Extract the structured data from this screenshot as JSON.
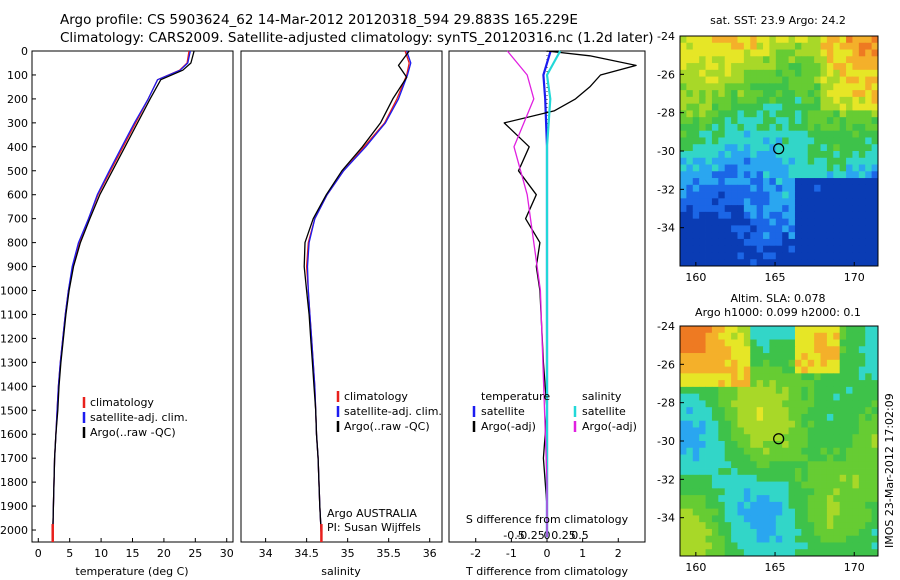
{
  "header": {
    "line1": "Argo profile: CS 5903624_62 14-Mar-2012 20120318_594 29.883S 165.229E",
    "line2": "Climatology: CARS2009. Satellite-adjusted climatology: synTS_20120316.nc (1.2d later)"
  },
  "colors": {
    "climatology": "#e8201c",
    "satellite": "#1c1cf0",
    "argo": "#000000",
    "t_satellite": "#1c1cf0",
    "s_satellite": "#22d8d8",
    "s_argo_adj": "#e020e0"
  },
  "chart_data": [
    {
      "type": "line",
      "panel": "temperature",
      "xlabel": "temperature (deg C)",
      "ylabel": "",
      "xlim": [
        -1,
        31
      ],
      "ylim": [
        2050,
        0
      ],
      "xticks": [
        "0",
        "5",
        "10",
        "15",
        "20",
        "25",
        "30"
      ],
      "xtick_values": [
        0,
        5,
        10,
        15,
        20,
        25,
        30
      ],
      "yticks": [
        "0",
        "100",
        "200",
        "300",
        "400",
        "500",
        "600",
        "700",
        "800",
        "900",
        "1000",
        "1100",
        "1200",
        "1300",
        "1400",
        "1500",
        "1600",
        "1700",
        "1800",
        "1900",
        "2000"
      ],
      "ytick_values": [
        0,
        100,
        200,
        300,
        400,
        500,
        600,
        700,
        800,
        900,
        1000,
        1100,
        1200,
        1300,
        1400,
        1500,
        1600,
        1700,
        1800,
        1900,
        2000
      ],
      "legend": [
        "climatology",
        "satellite-adj. clim.",
        "Argo(..raw -QC)"
      ],
      "series": [
        {
          "name": "climatology",
          "x": [
            24.0,
            23.7,
            22.5,
            19.0,
            17.5,
            15.5,
            13.5,
            11.5,
            9.5,
            8.0,
            6.5,
            5.5,
            4.8,
            4.3,
            3.9,
            3.5,
            3.2,
            3.0,
            2.8,
            2.6,
            2.4,
            2.3
          ],
          "y": [
            0,
            50,
            80,
            120,
            200,
            300,
            400,
            500,
            600,
            700,
            800,
            900,
            1000,
            1100,
            1200,
            1300,
            1400,
            1500,
            1600,
            1700,
            1900,
            2030
          ]
        },
        {
          "name": "satellite-adj. clim.",
          "x": [
            24.2,
            23.8,
            22.6,
            19.0,
            17.5,
            15.3,
            13.3,
            11.3,
            9.4,
            8.0,
            6.4,
            5.4,
            4.8,
            4.3,
            3.9,
            3.5,
            3.2,
            3.0,
            2.8,
            2.6,
            2.4,
            2.3
          ],
          "y": [
            0,
            50,
            80,
            120,
            200,
            300,
            400,
            500,
            600,
            700,
            800,
            900,
            1000,
            1100,
            1200,
            1300,
            1400,
            1500,
            1600,
            1700,
            1900,
            2030
          ]
        },
        {
          "name": "Argo(..raw -QC)",
          "x": [
            24.8,
            24.3,
            23.0,
            19.5,
            17.8,
            15.8,
            13.8,
            11.8,
            9.8,
            8.2,
            6.7,
            5.6,
            4.9,
            4.4,
            4.0,
            3.6,
            3.3,
            3.1,
            2.8,
            2.6,
            2.4,
            2.3
          ],
          "y": [
            0,
            50,
            80,
            120,
            200,
            300,
            400,
            500,
            600,
            700,
            800,
            900,
            1000,
            1100,
            1200,
            1300,
            1400,
            1500,
            1600,
            1700,
            1900,
            2030
          ]
        }
      ]
    },
    {
      "type": "line",
      "panel": "salinity",
      "xlabel": "salinity",
      "ylabel": "",
      "xlim": [
        33.7,
        36.15
      ],
      "ylim": [
        2050,
        0
      ],
      "xticks": [
        "34",
        "34.5",
        "35",
        "35.5",
        "36"
      ],
      "xtick_values": [
        34,
        34.5,
        35,
        35.5,
        36
      ],
      "legend": [
        "climatology",
        "satellite-adj. clim.",
        "Argo(..raw -QC)"
      ],
      "annotations": [
        "Argo AUSTRALIA",
        "PI: Susan Wijffels"
      ],
      "series": [
        {
          "name": "climatology",
          "x": [
            35.7,
            35.75,
            35.72,
            35.6,
            35.45,
            35.2,
            34.95,
            34.75,
            34.6,
            34.52,
            34.5,
            34.52,
            34.54,
            34.56,
            34.58,
            34.6,
            34.61,
            34.62,
            34.64,
            34.66,
            34.68
          ],
          "y": [
            0,
            50,
            100,
            200,
            300,
            400,
            500,
            600,
            700,
            800,
            900,
            1000,
            1100,
            1200,
            1300,
            1400,
            1500,
            1600,
            1700,
            1900,
            2030
          ]
        },
        {
          "name": "satellite-adj. clim.",
          "x": [
            35.72,
            35.77,
            35.73,
            35.62,
            35.46,
            35.22,
            34.95,
            34.75,
            34.6,
            34.53,
            34.51,
            34.52,
            34.54,
            34.56,
            34.58,
            34.6,
            34.61,
            34.62,
            34.64,
            34.66,
            34.68
          ],
          "y": [
            0,
            50,
            100,
            200,
            300,
            400,
            500,
            600,
            700,
            800,
            900,
            1000,
            1100,
            1200,
            1300,
            1400,
            1500,
            1600,
            1700,
            1900,
            2030
          ]
        },
        {
          "name": "Argo(..raw -QC)",
          "x": [
            35.75,
            35.62,
            35.72,
            35.55,
            35.4,
            35.18,
            34.93,
            34.74,
            34.58,
            34.48,
            34.47,
            34.5,
            34.53,
            34.55,
            34.57,
            34.59,
            34.61,
            34.62,
            34.64,
            34.66,
            34.68
          ],
          "y": [
            0,
            60,
            110,
            200,
            300,
            400,
            500,
            600,
            700,
            800,
            900,
            1000,
            1100,
            1200,
            1300,
            1400,
            1500,
            1600,
            1700,
            1900,
            2030
          ]
        }
      ]
    },
    {
      "type": "line",
      "panel": "differences",
      "xlabel": "T difference from climatology",
      "top_xlabel": "S difference from climatology",
      "xlim": [
        -2.75,
        2.75
      ],
      "ylim": [
        2050,
        0
      ],
      "xticks": [
        "-2",
        "-1",
        "0",
        "1",
        "2"
      ],
      "xtick_values": [
        -2,
        -1,
        0,
        1,
        2
      ],
      "s_ticks": [
        "-0.5",
        "-0.25",
        "0",
        "0.25",
        "0.5"
      ],
      "s_tick_values": [
        -0.5,
        -0.25,
        0,
        0.25,
        0.5
      ],
      "legend_temperature_title": "temperature",
      "legend_salinity_title": "salinity",
      "legend_temperature": [
        "satellite",
        "Argo(-adj)"
      ],
      "legend_salinity": [
        "satellite",
        "Argo(-adj)"
      ],
      "series": [
        {
          "name": "temperature satellite",
          "x": [
            0.1,
            0.0,
            -0.1,
            -0.05,
            0.0,
            0.0,
            0.0,
            0.0,
            0.0,
            0.0,
            0.0,
            0.0,
            0.0,
            0.0,
            0.0
          ],
          "y": [
            0,
            50,
            100,
            200,
            400,
            600,
            800,
            1000,
            1200,
            1400,
            1600,
            1800,
            1900,
            2000,
            2030
          ]
        },
        {
          "name": "temperature Argo(-adj)",
          "x": [
            0.0,
            1.2,
            2.5,
            1.5,
            1.2,
            0.8,
            0.2,
            -1.2,
            -0.5,
            -0.8,
            -0.3,
            -0.6,
            -0.2,
            -0.3,
            -0.2,
            -0.1,
            0.0,
            -0.1,
            0.0,
            0.0
          ],
          "y": [
            0,
            20,
            60,
            100,
            150,
            200,
            250,
            300,
            400,
            500,
            600,
            700,
            800,
            900,
            1000,
            1300,
            1500,
            1700,
            1900,
            2030
          ]
        },
        {
          "name": "salinity satellite",
          "x": [
            0.2,
            0.1,
            0.0,
            0.05,
            0.0,
            0.0,
            0.0,
            0.0,
            0.0,
            0.0
          ],
          "y": [
            0,
            50,
            100,
            200,
            400,
            800,
            1200,
            1600,
            1900,
            2030
          ]
        },
        {
          "name": "salinity Argo(-adj)",
          "x": [
            -0.6,
            -0.3,
            -0.2,
            -0.35,
            -0.5,
            -0.3,
            -0.2,
            -0.1,
            -0.05,
            0.0,
            0.0
          ],
          "y": [
            0,
            100,
            200,
            300,
            400,
            600,
            800,
            1000,
            1400,
            1800,
            2030
          ]
        }
      ]
    },
    {
      "type": "heatmap",
      "panel": "sst-map",
      "title": "sat. SST: 23.9 Argo: 24.2",
      "xlim": [
        159,
        171.5
      ],
      "ylim": [
        -36,
        -24
      ],
      "xticks": [
        "160",
        "165",
        "170"
      ],
      "xtick_values": [
        160,
        165,
        170
      ],
      "yticks": [
        "-24",
        "-26",
        "-28",
        "-30",
        "-32",
        "-34"
      ],
      "ytick_values": [
        -24,
        -26,
        -28,
        -30,
        -32,
        -34
      ],
      "marker": {
        "lon": 165.229,
        "lat": -29.883
      },
      "palette": [
        "#0a3cb4",
        "#1b66e6",
        "#2aa6f0",
        "#32d6c8",
        "#3ec24a",
        "#66cc33",
        "#a8d828",
        "#e6e626",
        "#f4b02a",
        "#ee7a22"
      ]
    },
    {
      "type": "heatmap",
      "panel": "sla-map",
      "title": "Altim. SLA: 0.078",
      "subtitle": "Argo h1000: 0.099 h2000: 0.1",
      "xlim": [
        159,
        171.5
      ],
      "ylim": [
        -36,
        -24
      ],
      "xticks": [
        "160",
        "165",
        "170"
      ],
      "xtick_values": [
        160,
        165,
        170
      ],
      "yticks": [
        "-24",
        "-26",
        "-28",
        "-30",
        "-32",
        "-34"
      ],
      "ytick_values": [
        -24,
        -26,
        -28,
        -30,
        -32,
        -34
      ],
      "marker": {
        "lon": 165.229,
        "lat": -29.883
      },
      "palette": [
        "#2aa6f0",
        "#32d6c8",
        "#3ec24a",
        "#66cc33",
        "#a8d828",
        "#e6e626",
        "#f4b02a",
        "#ee7a22"
      ]
    }
  ],
  "footer": {
    "credit": "IMOS 23-Mar-2012 17:02:09"
  }
}
